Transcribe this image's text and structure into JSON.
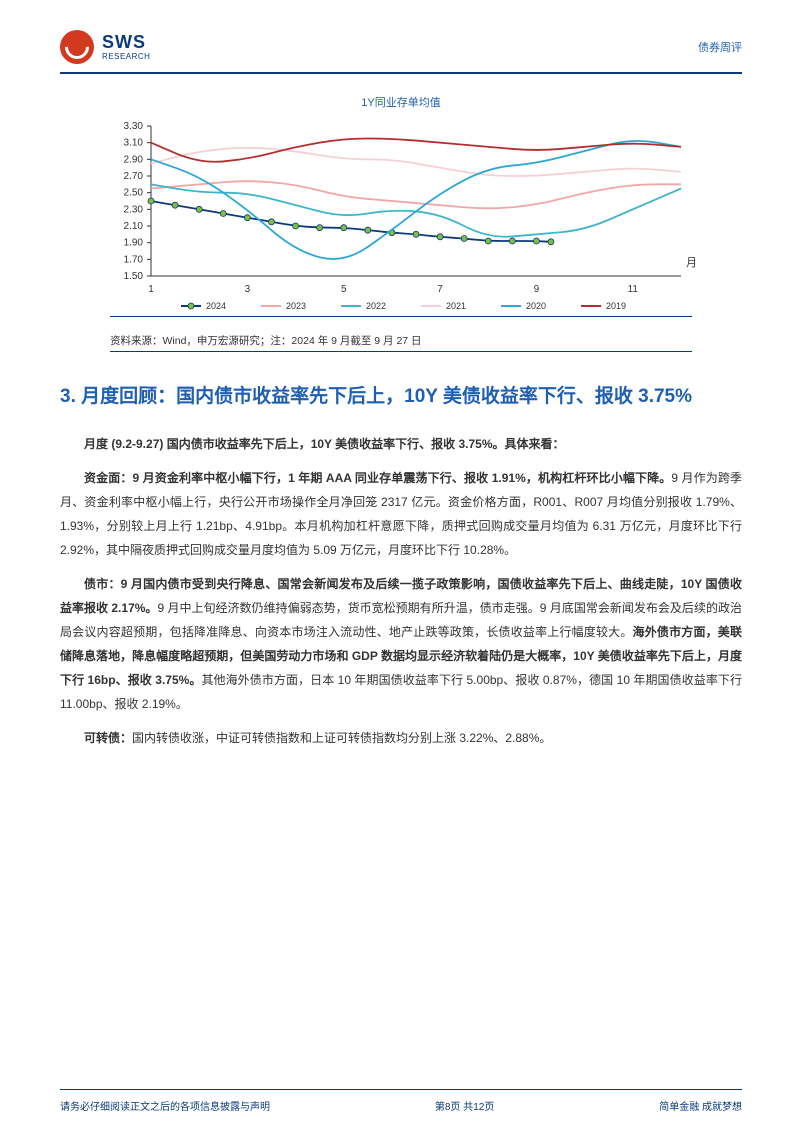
{
  "header": {
    "logo_main": "SWS",
    "logo_sub": "RESEARCH",
    "right_label": "债券周评"
  },
  "chart": {
    "title": "1Y同业存单均值",
    "type": "line",
    "xlabel": "月",
    "x_ticks": [
      1,
      3,
      5,
      7,
      9,
      11
    ],
    "y_ticks": [
      1.5,
      1.7,
      1.9,
      2.1,
      2.3,
      2.5,
      2.7,
      2.9,
      3.1,
      3.3
    ],
    "ylim": [
      1.5,
      3.3
    ],
    "xlim": [
      1,
      12
    ],
    "series": [
      {
        "name": "2024",
        "color": "#0a3a7a",
        "marker": "circle",
        "marker_fill": "#7fbf3f",
        "points": [
          [
            1,
            2.4
          ],
          [
            1.5,
            2.35
          ],
          [
            2,
            2.3
          ],
          [
            2.5,
            2.25
          ],
          [
            3,
            2.2
          ],
          [
            3.5,
            2.15
          ],
          [
            4,
            2.1
          ],
          [
            4.5,
            2.08
          ],
          [
            5,
            2.08
          ],
          [
            5.5,
            2.05
          ],
          [
            6,
            2.02
          ],
          [
            6.5,
            2.0
          ],
          [
            7,
            1.97
          ],
          [
            7.5,
            1.95
          ],
          [
            8,
            1.92
          ],
          [
            8.5,
            1.92
          ],
          [
            9,
            1.92
          ],
          [
            9.3,
            1.91
          ]
        ]
      },
      {
        "name": "2023",
        "color": "#f4a6a6",
        "points": [
          [
            1,
            2.55
          ],
          [
            2,
            2.6
          ],
          [
            3,
            2.65
          ],
          [
            4,
            2.6
          ],
          [
            5,
            2.45
          ],
          [
            6,
            2.4
          ],
          [
            7,
            2.35
          ],
          [
            8,
            2.3
          ],
          [
            9,
            2.35
          ],
          [
            10,
            2.5
          ],
          [
            11,
            2.6
          ],
          [
            12,
            2.6
          ]
        ]
      },
      {
        "name": "2022",
        "color": "#3fb5c9",
        "points": [
          [
            1,
            2.6
          ],
          [
            2,
            2.5
          ],
          [
            3,
            2.5
          ],
          [
            4,
            2.35
          ],
          [
            5,
            2.2
          ],
          [
            6,
            2.3
          ],
          [
            7,
            2.25
          ],
          [
            8,
            1.95
          ],
          [
            9,
            2.0
          ],
          [
            10,
            2.05
          ],
          [
            11,
            2.3
          ],
          [
            12,
            2.55
          ]
        ]
      },
      {
        "name": "2021",
        "color": "#f5d0d5",
        "points": [
          [
            1,
            2.85
          ],
          [
            2,
            3.0
          ],
          [
            3,
            3.05
          ],
          [
            4,
            3.0
          ],
          [
            5,
            2.9
          ],
          [
            6,
            2.9
          ],
          [
            7,
            2.8
          ],
          [
            8,
            2.7
          ],
          [
            9,
            2.7
          ],
          [
            10,
            2.75
          ],
          [
            11,
            2.8
          ],
          [
            12,
            2.75
          ]
        ]
      },
      {
        "name": "2020",
        "color": "#2aa7d4",
        "points": [
          [
            1,
            2.9
          ],
          [
            2,
            2.7
          ],
          [
            3,
            2.3
          ],
          [
            4,
            1.8
          ],
          [
            5,
            1.65
          ],
          [
            6,
            2.05
          ],
          [
            7,
            2.5
          ],
          [
            8,
            2.8
          ],
          [
            9,
            2.85
          ],
          [
            10,
            3.0
          ],
          [
            11,
            3.15
          ],
          [
            12,
            3.05
          ]
        ]
      },
      {
        "name": "2019",
        "color": "#b02f2f",
        "points": [
          [
            1,
            3.1
          ],
          [
            2,
            2.85
          ],
          [
            3,
            2.9
          ],
          [
            4,
            3.05
          ],
          [
            5,
            3.15
          ],
          [
            6,
            3.15
          ],
          [
            7,
            3.1
          ],
          [
            8,
            3.05
          ],
          [
            9,
            3.0
          ],
          [
            10,
            3.05
          ],
          [
            11,
            3.1
          ],
          [
            12,
            3.05
          ]
        ]
      }
    ],
    "background_color": "#ffffff",
    "grid": false,
    "source_note": "资料来源：Wind，申万宏源研究；注：2024 年 9 月截至 9 月 27 日"
  },
  "section": {
    "title": "3. 月度回顾：国内债市收益率先下后上，10Y 美债收益率下行、报收 3.75%"
  },
  "paragraphs": {
    "p1": "月度 (9.2-9.27) 国内债市收益率先下后上，10Y 美债收益率下行、报收 3.75%。具体来看：",
    "p2_lead": "资金面：9 月资金利率中枢小幅下行，1 年期 AAA 同业存单震荡下行、报收 1.91%，机构杠杆环比小幅下降。",
    "p2_rest": "9 月作为跨季月、资金利率中枢小幅上行，央行公开市场操作全月净回笼 2317 亿元。资金价格方面，R001、R007 月均值分别报收 1.79%、1.93%，分别较上月上行 1.21bp、4.91bp。本月机构加杠杆意愿下降，质押式回购成交量月均值为 6.31 万亿元，月度环比下行 2.92%，其中隔夜质押式回购成交量月度均值为 5.09 万亿元，月度环比下行 10.28%。",
    "p3_lead": "债市：9 月国内债市受到央行降息、国常会新闻发布及后续一揽子政策影响，国债收益率先下后上、曲线走陡，10Y 国债收益率报收 2.17%。",
    "p3_mid": "9 月中上旬经济数仍维持偏弱态势，货币宽松预期有所升温，债市走强。9 月底国常会新闻发布会及后续的政治局会议内容超预期，包括降准降息、向资本市场注入流动性、地产止跌等政策，长债收益率上行幅度较大。",
    "p3_bold2": "海外债市方面，美联储降息落地，降息幅度略超预期，但美国劳动力市场和 GDP 数据均显示经济软着陆仍是大概率，10Y 美债收益率先下后上，月度下行 16bp、报收 3.75%。",
    "p3_tail": "其他海外债市方面，日本 10 年期国债收益率下行 5.00bp、报收 0.87%，德国 10 年期国债收益率下行 11.00bp、报收 2.19%。",
    "p4_lead": "可转债：",
    "p4_rest": "国内转债收涨，中证可转债指数和上证可转债指数均分别上涨 3.22%、2.88%。"
  },
  "footer": {
    "left": "请务必仔细阅读正文之后的各项信息披露与声明",
    "center": "第8页 共12页",
    "right": "简单金融 成就梦想"
  }
}
